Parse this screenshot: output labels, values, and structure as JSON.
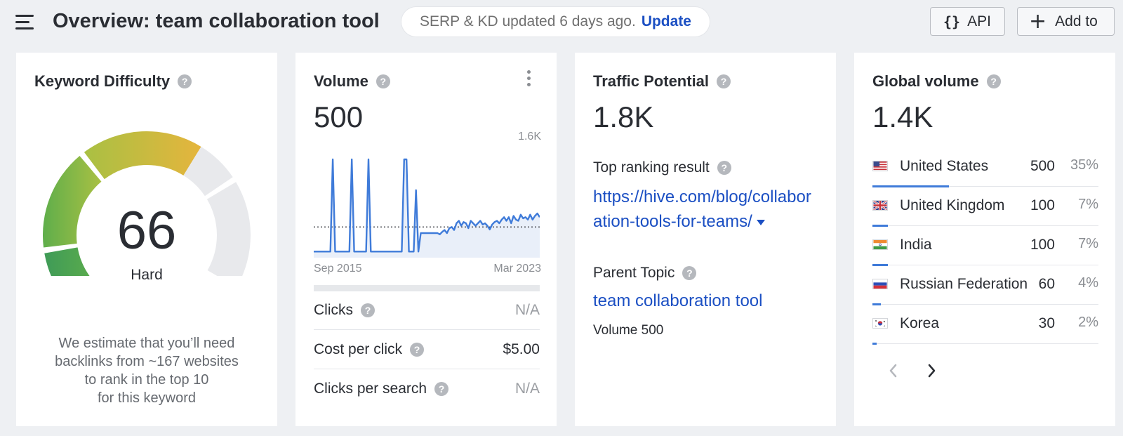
{
  "header": {
    "title": "Overview: team collaboration tool",
    "update_notice": "SERP & KD updated 6 days ago.",
    "update_link": "Update",
    "api_label": "API",
    "api_icon": "{}",
    "add_label": "Add to",
    "add_icon": "+"
  },
  "keyword_difficulty": {
    "title": "Keyword Difficulty",
    "value": "66",
    "level": "Hard",
    "description_lines": [
      "We estimate that you’ll need",
      "backlinks from ~167 websites",
      "to rank in the top 10",
      "for this keyword"
    ],
    "score": 66,
    "colors": {
      "green_dark": "#3f9b57",
      "green": "#5fae4b",
      "yellow_green": "#a9c043",
      "orange": "#e5b53d",
      "empty": "#e8e9ec"
    }
  },
  "volume": {
    "title": "Volume",
    "value": "500",
    "chart_max_label": "1.6K",
    "chart_start_label": "Sep 2015",
    "chart_end_label": "Mar 2023",
    "rows": [
      {
        "label": "Clicks",
        "value": "N/A"
      },
      {
        "label": "Cost per click",
        "value": "$5.00"
      },
      {
        "label": "Clicks per search",
        "value": "N/A"
      }
    ],
    "series": [
      100,
      100,
      100,
      100,
      100,
      100,
      100,
      100,
      1600,
      100,
      100,
      100,
      100,
      100,
      100,
      100,
      1600,
      100,
      100,
      100,
      100,
      100,
      100,
      1600,
      100,
      100,
      100,
      100,
      100,
      100,
      100,
      100,
      100,
      100,
      100,
      100,
      100,
      100,
      1600,
      1600,
      100,
      100,
      100,
      1100,
      100,
      400,
      400,
      400,
      400,
      400,
      400,
      400,
      400,
      380,
      420,
      450,
      400,
      480,
      500,
      450,
      560,
      600,
      520,
      580,
      560,
      480,
      600,
      560,
      520,
      560,
      600,
      540,
      560,
      520,
      460,
      540,
      580,
      600,
      560,
      620,
      660,
      600,
      660,
      560,
      680,
      620,
      600,
      700,
      640,
      660,
      620,
      700,
      620,
      680,
      720,
      660
    ],
    "avg_line": 500,
    "line_color": "#3f7bd9"
  },
  "traffic_potential": {
    "title": "Traffic Potential",
    "value": "1.8K",
    "top_ranking_label": "Top ranking result",
    "top_ranking_url": "https://hive.com/blog/collaboration-tools-for-teams/",
    "parent_topic_label": "Parent Topic",
    "parent_topic": "team collaboration tool",
    "parent_volume": "Volume 500"
  },
  "global_volume": {
    "title": "Global volume",
    "value": "1.4K",
    "countries": [
      {
        "name": "United States",
        "volume": "500",
        "percent": "35%",
        "share": 0.35,
        "flag": "us-flag"
      },
      {
        "name": "United Kingdom",
        "volume": "100",
        "percent": "7%",
        "share": 0.07,
        "flag": "uk-flag"
      },
      {
        "name": "India",
        "volume": "100",
        "percent": "7%",
        "share": 0.07,
        "flag": "india-flag"
      },
      {
        "name": "Russian Federation",
        "volume": "60",
        "percent": "4%",
        "share": 0.04,
        "flag": "russia-flag"
      },
      {
        "name": "Korea",
        "volume": "30",
        "percent": "2%",
        "share": 0.02,
        "flag": "korea-flag"
      }
    ],
    "prev_icon": "chevron-left-icon",
    "next_icon": "chevron-right-icon"
  },
  "colors": {
    "accent": "#1b4fc3",
    "bar": "#3f7bd9"
  }
}
